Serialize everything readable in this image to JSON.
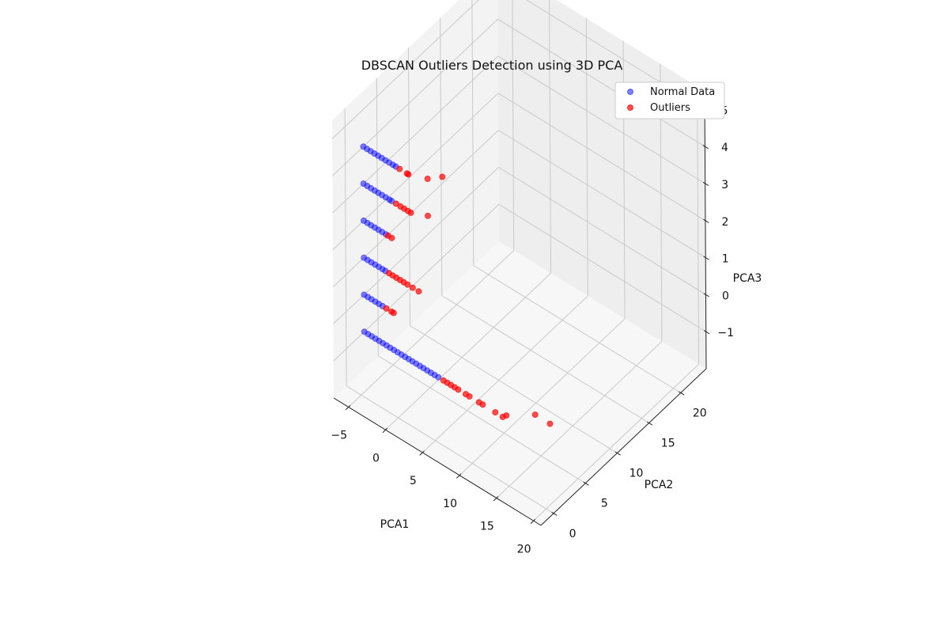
{
  "chart_data": {
    "type": "scatter",
    "projection": "3d",
    "title": "DBSCAN Outliers Detection using 3D PCA",
    "xlabel": "PCA1",
    "ylabel": "PCA2",
    "zlabel": "PCA3",
    "xlim": [
      -7,
      21
    ],
    "ylim": [
      -2,
      24
    ],
    "zlim": [
      -2,
      5.5
    ],
    "xticks": [
      -5,
      0,
      5,
      10,
      15,
      20
    ],
    "yticks": [
      0,
      5,
      10,
      15,
      20
    ],
    "zticks": [
      -1,
      0,
      1,
      2,
      3,
      4,
      5
    ],
    "xticklabels": [
      "−5",
      "0",
      "5",
      "10",
      "15",
      "20"
    ],
    "yticklabels": [
      "0",
      "5",
      "10",
      "15",
      "20"
    ],
    "zticklabels": [
      "−1",
      "0",
      "1",
      "2",
      "3",
      "4",
      "5"
    ],
    "grid": true,
    "legend": {
      "placement": "upper-right"
    },
    "series": [
      {
        "name": "Normal Data",
        "color": "#0000ff",
        "alpha": 0.5,
        "points": [
          [
            -4.1,
            -0.5,
            4.9
          ],
          [
            -3.6,
            -0.5,
            4.9
          ],
          [
            -3.1,
            -0.5,
            4.9
          ],
          [
            -2.6,
            -0.5,
            4.9
          ],
          [
            -2.1,
            -0.5,
            4.9
          ],
          [
            -1.6,
            -0.5,
            4.9
          ],
          [
            -1.1,
            -0.5,
            4.9
          ],
          [
            -0.6,
            -0.5,
            4.9
          ],
          [
            -0.1,
            -0.5,
            4.9
          ],
          [
            0.3,
            -0.5,
            4.9
          ],
          [
            -4.1,
            -0.5,
            3.9
          ],
          [
            -3.6,
            -0.5,
            3.9
          ],
          [
            -3.1,
            -0.5,
            3.9
          ],
          [
            -2.6,
            -0.5,
            3.9
          ],
          [
            -2.1,
            -0.5,
            3.9
          ],
          [
            -1.6,
            -0.5,
            3.9
          ],
          [
            -1.1,
            -0.5,
            3.9
          ],
          [
            -0.6,
            -0.5,
            3.9
          ],
          [
            -0.3,
            -0.5,
            3.9
          ],
          [
            -4.1,
            -0.5,
            2.9
          ],
          [
            -3.6,
            -0.5,
            2.9
          ],
          [
            -3.1,
            -0.5,
            2.9
          ],
          [
            -2.6,
            -0.5,
            2.9
          ],
          [
            -2.1,
            -0.5,
            2.9
          ],
          [
            -1.6,
            -0.5,
            2.9
          ],
          [
            -1.1,
            -0.5,
            2.9
          ],
          [
            -4.1,
            -0.5,
            1.9
          ],
          [
            -3.6,
            -0.5,
            1.9
          ],
          [
            -3.1,
            -0.5,
            1.9
          ],
          [
            -2.6,
            -0.5,
            1.9
          ],
          [
            -2.1,
            -0.5,
            1.9
          ],
          [
            -1.6,
            -0.5,
            1.9
          ],
          [
            -1.2,
            -0.5,
            1.9
          ],
          [
            -4.1,
            -0.5,
            0.9
          ],
          [
            -3.6,
            -0.5,
            0.9
          ],
          [
            -3.1,
            -0.5,
            0.9
          ],
          [
            -2.6,
            -0.5,
            0.9
          ],
          [
            -2.1,
            -0.5,
            0.9
          ],
          [
            -1.6,
            -0.5,
            0.9
          ],
          [
            -4.1,
            -0.5,
            -0.1
          ],
          [
            -3.6,
            -0.5,
            -0.1
          ],
          [
            -3.1,
            -0.5,
            -0.1
          ],
          [
            -2.6,
            -0.5,
            -0.1
          ],
          [
            -2.1,
            -0.5,
            -0.1
          ],
          [
            -1.6,
            -0.5,
            -0.1
          ],
          [
            -1.1,
            -0.5,
            -0.1
          ],
          [
            -0.6,
            -0.5,
            -0.1
          ],
          [
            -0.1,
            -0.5,
            -0.1
          ],
          [
            0.4,
            -0.5,
            -0.1
          ],
          [
            0.9,
            -0.5,
            -0.1
          ],
          [
            1.4,
            -0.5,
            -0.1
          ],
          [
            1.9,
            -0.5,
            -0.1
          ],
          [
            2.4,
            -0.5,
            -0.1
          ],
          [
            2.9,
            -0.5,
            -0.1
          ],
          [
            3.4,
            -0.5,
            -0.1
          ],
          [
            3.9,
            -0.5,
            -0.1
          ],
          [
            4.4,
            -0.5,
            -0.1
          ],
          [
            4.9,
            -0.5,
            -0.1
          ],
          [
            5.4,
            -0.5,
            -0.1
          ],
          [
            5.9,
            -0.5,
            -0.1
          ]
        ]
      },
      {
        "name": "Outliers",
        "color": "#ff0000",
        "alpha": 0.7,
        "points": [
          [
            0.8,
            -0.5,
            4.9
          ],
          [
            1.8,
            -0.5,
            4.9
          ],
          [
            2.0,
            -0.5,
            4.9
          ],
          [
            4.6,
            -0.5,
            5.1
          ],
          [
            6.6,
            -0.5,
            5.4
          ],
          [
            0.3,
            -0.5,
            3.9
          ],
          [
            0.9,
            -0.5,
            3.9
          ],
          [
            1.4,
            -0.5,
            3.9
          ],
          [
            1.9,
            -0.5,
            3.9
          ],
          [
            2.3,
            -0.5,
            3.9
          ],
          [
            4.6,
            -0.5,
            4.1
          ],
          [
            -0.8,
            -0.5,
            2.9
          ],
          [
            -0.3,
            -0.5,
            2.9
          ],
          [
            -0.7,
            -0.5,
            1.9
          ],
          [
            -0.2,
            -0.5,
            1.9
          ],
          [
            0.3,
            -0.5,
            1.9
          ],
          [
            0.8,
            -0.5,
            1.9
          ],
          [
            1.3,
            -0.5,
            1.9
          ],
          [
            1.8,
            -0.5,
            1.9
          ],
          [
            2.5,
            -0.5,
            1.9
          ],
          [
            3.3,
            -0.5,
            1.9
          ],
          [
            -1.1,
            -0.5,
            0.9
          ],
          [
            -0.4,
            -0.5,
            0.9
          ],
          [
            -0.1,
            -0.5,
            0.9
          ],
          [
            6.6,
            -0.5,
            -0.1
          ],
          [
            7.1,
            -0.5,
            -0.1
          ],
          [
            7.6,
            -0.5,
            -0.1
          ],
          [
            8.1,
            -0.5,
            -0.1
          ],
          [
            8.6,
            -0.5,
            -0.1
          ],
          [
            9.6,
            -0.5,
            -0.1
          ],
          [
            10.1,
            -0.5,
            -0.1
          ],
          [
            11.4,
            -0.5,
            -0.1
          ],
          [
            11.9,
            -0.5,
            -0.1
          ],
          [
            13.6,
            -0.5,
            -0.1
          ],
          [
            14.6,
            -0.5,
            -0.1
          ],
          [
            15.1,
            -0.5,
            0.0
          ],
          [
            19.0,
            -0.5,
            0.5
          ],
          [
            21.0,
            -0.5,
            0.5
          ]
        ]
      }
    ]
  }
}
